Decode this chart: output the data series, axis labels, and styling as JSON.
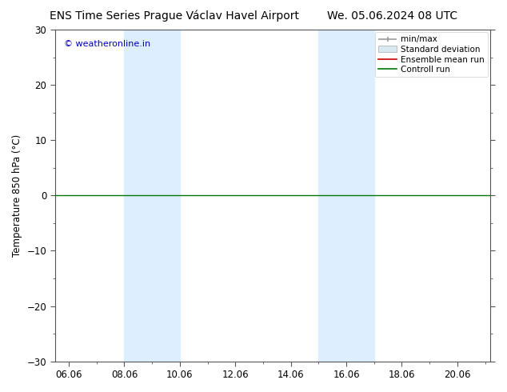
{
  "title_left": "ENS Time Series Prague Václav Havel Airport",
  "title_right": "We. 05.06.2024 08 UTC",
  "ylabel": "Temperature 850 hPa (°C)",
  "ylim": [
    -30,
    30
  ],
  "yticks": [
    -30,
    -20,
    -10,
    0,
    10,
    20,
    30
  ],
  "xlim_start": 5.5,
  "xlim_end": 21.2,
  "xtick_labels": [
    "06.06",
    "08.06",
    "10.06",
    "12.06",
    "14.06",
    "16.06",
    "18.06",
    "20.06"
  ],
  "xtick_positions": [
    6.0,
    8.0,
    10.0,
    12.0,
    14.0,
    16.0,
    18.0,
    20.0
  ],
  "shade_bands": [
    {
      "xstart": 8.0,
      "xend": 10.0
    },
    {
      "xstart": 15.0,
      "xend": 17.0
    }
  ],
  "shade_color": "#ddeeff",
  "control_run_y": 0.0,
  "control_run_color": "#007700",
  "ensemble_mean_color": "#cc0000",
  "minmax_color": "#999999",
  "stddev_color": "#cccccc",
  "watermark_text": "© weatheronline.in",
  "watermark_color": "#0000bb",
  "background_color": "#ffffff",
  "plot_bg_color": "#ffffff",
  "title_fontsize": 10,
  "label_fontsize": 8.5,
  "tick_fontsize": 8.5,
  "legend_fontsize": 7.5
}
